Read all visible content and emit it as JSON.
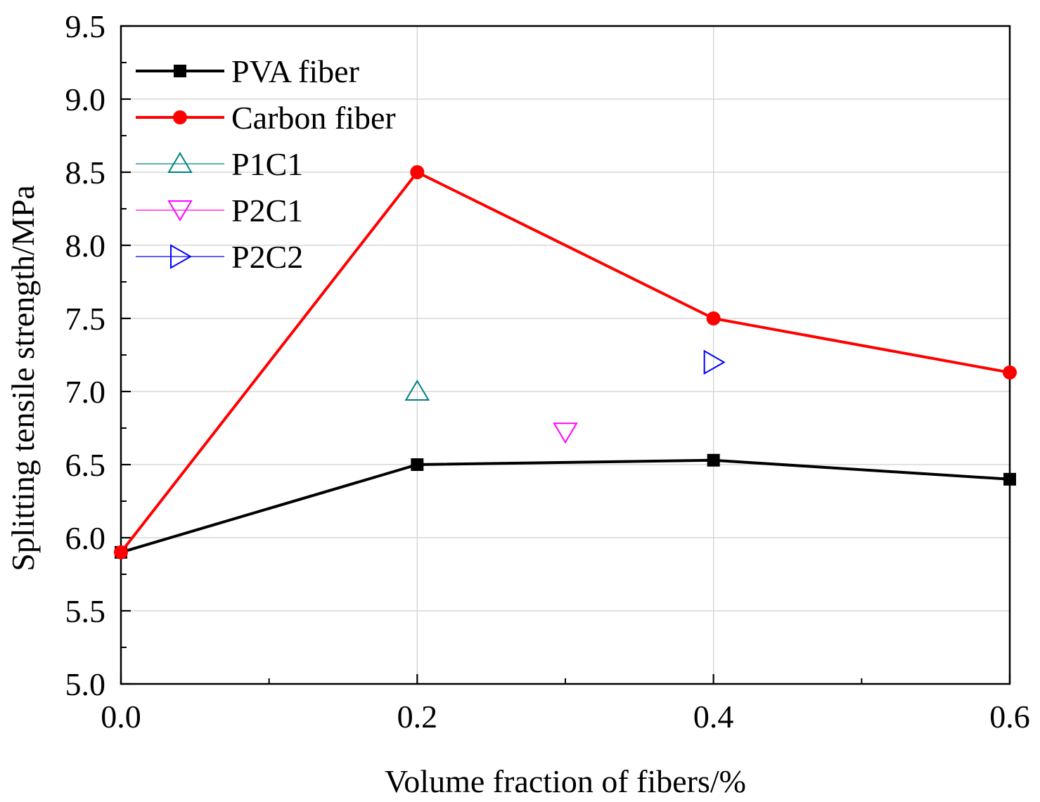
{
  "chart_data": {
    "type": "line",
    "title": "",
    "xlabel": "Volume fraction of fibers/%",
    "ylabel": "Splitting tensile strength/MPa",
    "xlim": [
      0.0,
      0.6
    ],
    "ylim": [
      5.0,
      9.5
    ],
    "x_ticks": [
      "0.0",
      "0.2",
      "0.4",
      "0.6"
    ],
    "x_tick_values": [
      0.0,
      0.2,
      0.4,
      0.6
    ],
    "x_minor_ticks": [
      0.1,
      0.3,
      0.5
    ],
    "y_ticks": [
      "5.0",
      "5.5",
      "6.0",
      "6.5",
      "7.0",
      "7.5",
      "8.0",
      "8.5",
      "9.0",
      "9.5"
    ],
    "y_tick_values": [
      5.0,
      5.5,
      6.0,
      6.5,
      7.0,
      7.5,
      8.0,
      8.5,
      9.0,
      9.5
    ],
    "grid": true,
    "legend_position": "top-left",
    "series": [
      {
        "name": "PVA fiber",
        "style": "line-with-markers",
        "marker": "square-filled",
        "color": "#000000",
        "points": [
          [
            0.0,
            5.9
          ],
          [
            0.2,
            6.5
          ],
          [
            0.4,
            6.53
          ],
          [
            0.6,
            6.4
          ]
        ]
      },
      {
        "name": "Carbon fiber",
        "style": "line-with-markers",
        "marker": "circle-filled",
        "color": "#ff0000",
        "points": [
          [
            0.0,
            5.9
          ],
          [
            0.2,
            8.5
          ],
          [
            0.4,
            7.5
          ],
          [
            0.6,
            7.13
          ]
        ]
      },
      {
        "name": "P1C1",
        "style": "markers-only",
        "marker": "triangle-up-open",
        "color": "#008080",
        "points": [
          [
            0.2,
            7.0
          ]
        ]
      },
      {
        "name": "P2C1",
        "style": "markers-only",
        "marker": "triangle-down-open",
        "color": "#ff00ff",
        "points": [
          [
            0.3,
            6.72
          ]
        ]
      },
      {
        "name": "P2C2",
        "style": "markers-only",
        "marker": "triangle-right-open",
        "color": "#0000ff",
        "points": [
          [
            0.4,
            7.2
          ]
        ]
      }
    ]
  }
}
